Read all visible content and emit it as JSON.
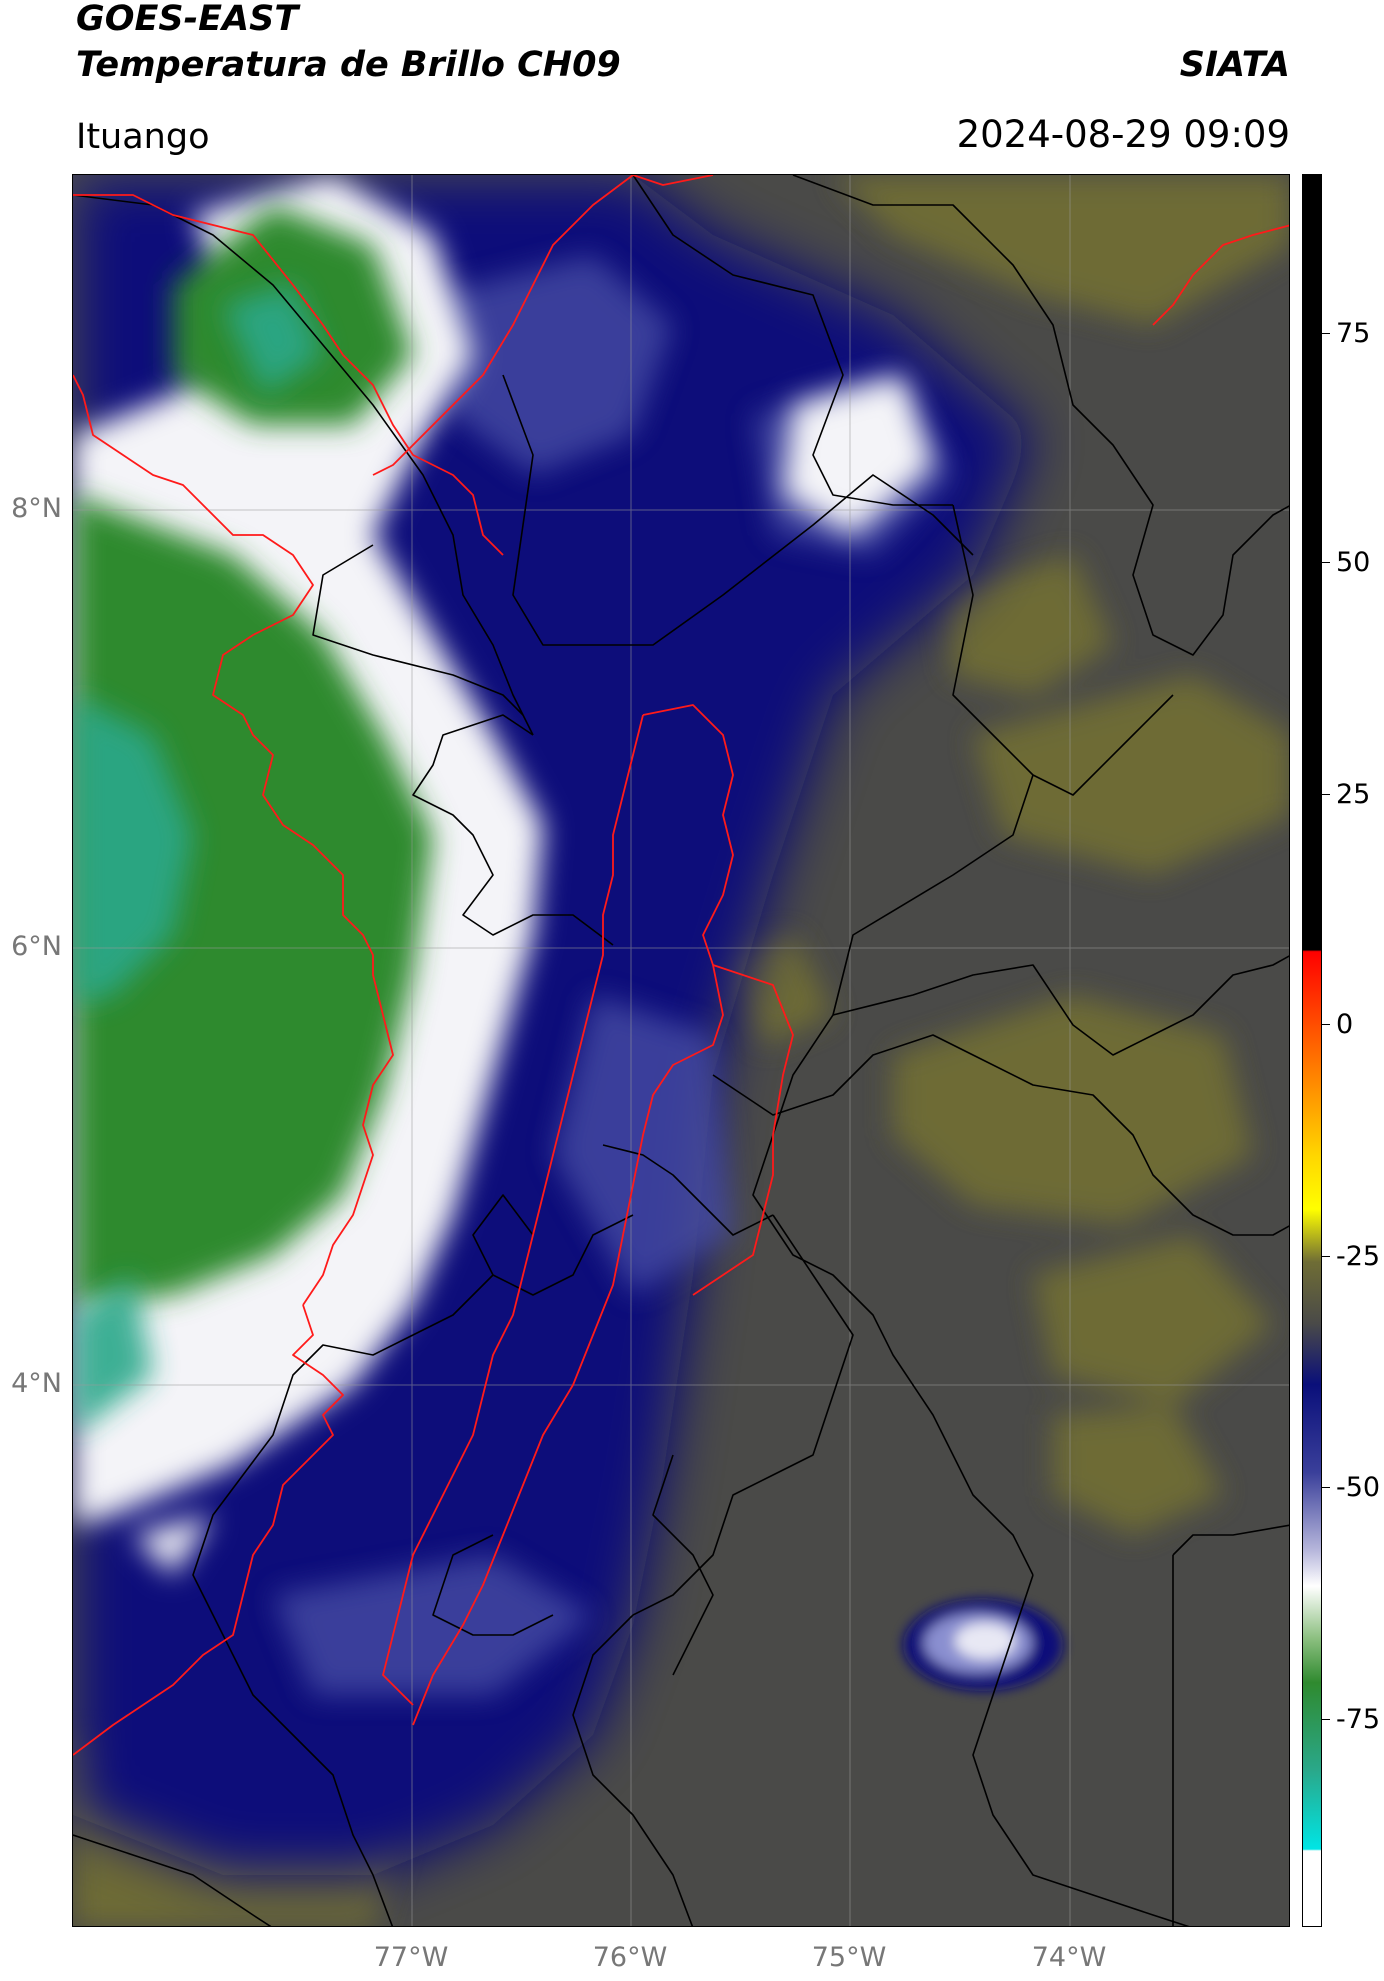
{
  "header": {
    "title_line1": "GOES-EAST",
    "title_line2": "Temperatura de Brillo CH09",
    "brand": "SIATA",
    "location": "Ituango",
    "datetime": "2024-08-29 09:09"
  },
  "map": {
    "lon_ticks": [
      "77°W",
      "76°W",
      "75°W",
      "74°W"
    ],
    "lat_ticks": [
      "8°N",
      "6°N",
      "4°N"
    ],
    "colors": {
      "warm_dark": "#4a4a48",
      "olive": "#6f6d35",
      "navy": "#0a0f7a",
      "blue_mid": "#4a4fa6",
      "white": "#f4f4f8",
      "green": "#2f8a2f",
      "teal": "#2aa88a",
      "boundary_red": "#ff1a1a",
      "boundary_black": "#000000"
    }
  },
  "colorbar": {
    "tick_labels": [
      "75",
      "50",
      "25",
      "0",
      "-25",
      "-50",
      "-75"
    ]
  }
}
